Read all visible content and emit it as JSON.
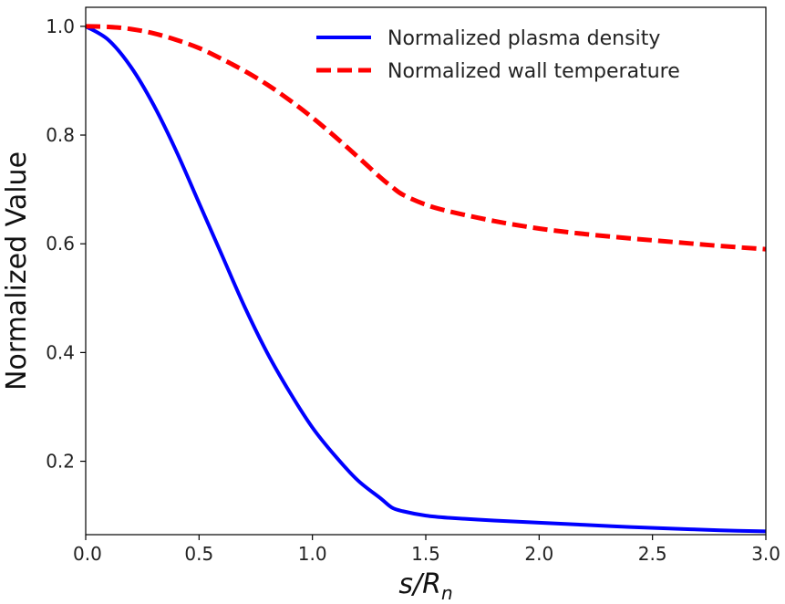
{
  "chart_data": {
    "type": "line",
    "title": "",
    "xlabel": "s/R_n",
    "xlabel_parts": {
      "main": "s/R",
      "sub": "n"
    },
    "ylabel": "Normalized Value",
    "xlim": [
      0.0,
      3.0
    ],
    "ylim": [
      0.065,
      1.035
    ],
    "xticks": [
      0.0,
      0.5,
      1.0,
      1.5,
      2.0,
      2.5,
      3.0
    ],
    "xtick_labels": [
      "0.0",
      "0.5",
      "1.0",
      "1.5",
      "2.0",
      "2.5",
      "3.0"
    ],
    "yticks": [
      0.2,
      0.4,
      0.6,
      0.8,
      1.0
    ],
    "ytick_labels": [
      "0.2",
      "0.4",
      "0.6",
      "0.8",
      "1.0"
    ],
    "grid": false,
    "legend_position": "top-right",
    "series": [
      {
        "name": "Normalized plasma density",
        "color": "#0000ff",
        "style": "solid",
        "x": [
          0.0,
          0.1,
          0.2,
          0.3,
          0.4,
          0.5,
          0.6,
          0.7,
          0.8,
          0.9,
          1.0,
          1.1,
          1.2,
          1.3,
          1.35,
          1.4,
          1.5,
          1.6,
          1.8,
          2.0,
          2.2,
          2.4,
          2.6,
          2.8,
          3.0
        ],
        "y": [
          1.0,
          0.975,
          0.925,
          0.855,
          0.77,
          0.675,
          0.58,
          0.485,
          0.4,
          0.327,
          0.262,
          0.21,
          0.165,
          0.132,
          0.115,
          0.108,
          0.1,
          0.096,
          0.091,
          0.087,
          0.083,
          0.079,
          0.076,
          0.073,
          0.071
        ]
      },
      {
        "name": "Normalized wall temperature",
        "color": "#ff0000",
        "style": "dashed",
        "x": [
          0.0,
          0.1,
          0.2,
          0.3,
          0.4,
          0.5,
          0.6,
          0.7,
          0.8,
          0.9,
          1.0,
          1.1,
          1.2,
          1.3,
          1.35,
          1.4,
          1.5,
          1.6,
          1.8,
          2.0,
          2.2,
          2.4,
          2.6,
          2.8,
          3.0
        ],
        "y": [
          1.0,
          0.999,
          0.995,
          0.987,
          0.975,
          0.96,
          0.94,
          0.918,
          0.893,
          0.864,
          0.832,
          0.797,
          0.76,
          0.722,
          0.705,
          0.69,
          0.672,
          0.66,
          0.642,
          0.628,
          0.618,
          0.61,
          0.603,
          0.596,
          0.59
        ]
      }
    ]
  }
}
